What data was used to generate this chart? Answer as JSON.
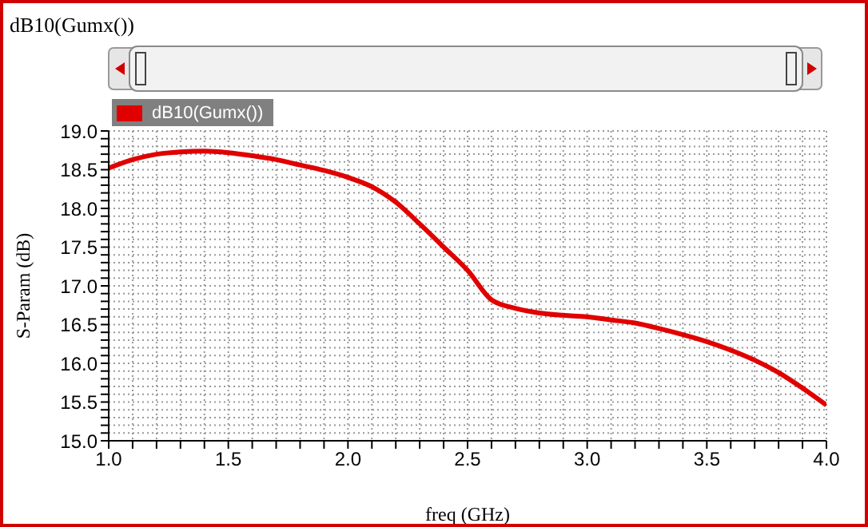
{
  "chart_data": {
    "type": "line",
    "title": "dB10(Gumx())",
    "xlabel": "freq (GHz)",
    "ylabel": "S-Param (dB)",
    "x": [
      1.0,
      1.1,
      1.2,
      1.3,
      1.4,
      1.5,
      1.6,
      1.7,
      1.8,
      1.9,
      2.0,
      2.1,
      2.2,
      2.3,
      2.4,
      2.5,
      2.6,
      2.7,
      2.8,
      2.9,
      3.0,
      3.1,
      3.2,
      3.3,
      3.4,
      3.5,
      3.6,
      3.7,
      3.8,
      3.9,
      4.0
    ],
    "series": [
      {
        "name": "dB10(Gumx())",
        "color": "#e00000",
        "values": [
          18.52,
          18.63,
          18.7,
          18.73,
          18.74,
          18.72,
          18.68,
          18.63,
          18.56,
          18.49,
          18.4,
          18.28,
          18.08,
          17.8,
          17.5,
          17.2,
          16.82,
          16.71,
          16.65,
          16.62,
          16.6,
          16.56,
          16.52,
          16.45,
          16.37,
          16.28,
          16.17,
          16.04,
          15.88,
          15.68,
          15.46
        ]
      }
    ],
    "xlim": [
      1.0,
      4.0
    ],
    "ylim": [
      15.0,
      19.0
    ],
    "xticks": [
      "1.0",
      {
        "value": 1.1,
        "label": null
      },
      {
        "value": 1.2,
        "label": null
      },
      {
        "value": 1.3,
        "label": null
      },
      {
        "value": 1.4,
        "label": null
      },
      {
        "value": 1.5,
        "label": "1.5"
      },
      {
        "value": 1.6,
        "label": null
      },
      {
        "value": 1.7,
        "label": null
      },
      {
        "value": 1.8,
        "label": null
      },
      {
        "value": 1.9,
        "label": null
      },
      {
        "value": 2.0,
        "label": "2.0"
      },
      {
        "value": 2.1,
        "label": null
      },
      {
        "value": 2.2,
        "label": null
      },
      {
        "value": 2.3,
        "label": null
      },
      {
        "value": 2.4,
        "label": null
      },
      {
        "value": 2.5,
        "label": "2.5"
      },
      {
        "value": 2.6,
        "label": null
      },
      {
        "value": 2.7,
        "label": null
      },
      {
        "value": 2.8,
        "label": null
      },
      {
        "value": 2.9,
        "label": null
      },
      {
        "value": 3.0,
        "label": "3.0"
      },
      {
        "value": 3.1,
        "label": null
      },
      {
        "value": 3.2,
        "label": null
      },
      {
        "value": 3.3,
        "label": null
      },
      {
        "value": 3.4,
        "label": null
      },
      {
        "value": 3.5,
        "label": "3.5"
      },
      {
        "value": 3.6,
        "label": null
      },
      {
        "value": 3.7,
        "label": null
      },
      {
        "value": 3.8,
        "label": null
      },
      {
        "value": 3.9,
        "label": null
      },
      {
        "value": 4.0,
        "label": "4.0"
      }
    ],
    "yticks": [
      {
        "value": 15.0,
        "label": "15.0"
      },
      {
        "value": 15.1,
        "label": null
      },
      {
        "value": 15.2,
        "label": null
      },
      {
        "value": 15.3,
        "label": null
      },
      {
        "value": 15.4,
        "label": null
      },
      {
        "value": 15.5,
        "label": "15.5"
      },
      {
        "value": 15.6,
        "label": null
      },
      {
        "value": 15.7,
        "label": null
      },
      {
        "value": 15.8,
        "label": null
      },
      {
        "value": 15.9,
        "label": null
      },
      {
        "value": 16.0,
        "label": "16.0"
      },
      {
        "value": 16.1,
        "label": null
      },
      {
        "value": 16.2,
        "label": null
      },
      {
        "value": 16.3,
        "label": null
      },
      {
        "value": 16.4,
        "label": null
      },
      {
        "value": 16.5,
        "label": "16.5"
      },
      {
        "value": 16.6,
        "label": null
      },
      {
        "value": 16.7,
        "label": null
      },
      {
        "value": 16.8,
        "label": null
      },
      {
        "value": 16.9,
        "label": null
      },
      {
        "value": 17.0,
        "label": "17.0"
      },
      {
        "value": 17.1,
        "label": null
      },
      {
        "value": 17.2,
        "label": null
      },
      {
        "value": 17.3,
        "label": null
      },
      {
        "value": 17.4,
        "label": null
      },
      {
        "value": 17.5,
        "label": "17.5"
      },
      {
        "value": 17.6,
        "label": null
      },
      {
        "value": 17.7,
        "label": null
      },
      {
        "value": 17.8,
        "label": null
      },
      {
        "value": 17.9,
        "label": null
      },
      {
        "value": 18.0,
        "label": "18.0"
      },
      {
        "value": 18.1,
        "label": null
      },
      {
        "value": 18.2,
        "label": null
      },
      {
        "value": 18.3,
        "label": null
      },
      {
        "value": 18.4,
        "label": null
      },
      {
        "value": 18.5,
        "label": "18.5"
      },
      {
        "value": 18.6,
        "label": null
      },
      {
        "value": 18.7,
        "label": null
      },
      {
        "value": 18.8,
        "label": null
      },
      {
        "value": 18.9,
        "label": null
      },
      {
        "value": 19.0,
        "label": "19.0"
      }
    ],
    "grid": true,
    "legend": "top left",
    "line_style": "solid"
  }
}
